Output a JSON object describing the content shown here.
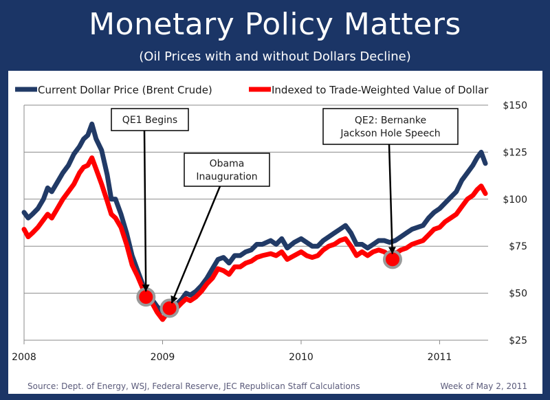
{
  "header": {
    "title": "Monetary Policy Matters",
    "subtitle": "(Oil Prices with and without Dollars Decline)"
  },
  "footer": {
    "source": "Source:  Dept. of Energy, WSJ, Federal Reserve, JEC Republican Staff Calculations",
    "date": "Week of May 2, 2011"
  },
  "colors": {
    "background": "#1b3566",
    "series_current": "#213a66",
    "series_indexed": "#ff0000",
    "marker": "#9a9a9a"
  },
  "chart_data": {
    "type": "line",
    "title": "Monetary Policy Matters",
    "subtitle": "(Oil Prices with and without Dollars Decline)",
    "xlabel": "",
    "ylabel": "",
    "xlim": [
      2008.0,
      2011.35
    ],
    "ylim": [
      25,
      150
    ],
    "x_ticks": [
      2008,
      2009,
      2010,
      2011
    ],
    "x_tick_labels": [
      "2008",
      "2009",
      "2010",
      "2011"
    ],
    "y_ticks": [
      25,
      50,
      75,
      100,
      125,
      150
    ],
    "y_tick_labels": [
      "$25",
      "$50",
      "$75",
      "$100",
      "$125",
      "$150"
    ],
    "y_axis_side": "right",
    "grid": "horizontal",
    "legend_position": "top",
    "series": [
      {
        "name": "Current Dollar Price (Brent Crude)",
        "color": "#213a66",
        "points": [
          [
            2008.0,
            93
          ],
          [
            2008.03,
            90
          ],
          [
            2008.06,
            92
          ],
          [
            2008.1,
            95
          ],
          [
            2008.14,
            100
          ],
          [
            2008.17,
            106
          ],
          [
            2008.2,
            104
          ],
          [
            2008.24,
            109
          ],
          [
            2008.28,
            114
          ],
          [
            2008.32,
            118
          ],
          [
            2008.36,
            124
          ],
          [
            2008.4,
            128
          ],
          [
            2008.43,
            132
          ],
          [
            2008.46,
            134
          ],
          [
            2008.49,
            140
          ],
          [
            2008.52,
            132
          ],
          [
            2008.56,
            126
          ],
          [
            2008.6,
            113
          ],
          [
            2008.63,
            100
          ],
          [
            2008.66,
            100
          ],
          [
            2008.7,
            92
          ],
          [
            2008.74,
            82
          ],
          [
            2008.78,
            70
          ],
          [
            2008.82,
            62
          ],
          [
            2008.86,
            54
          ],
          [
            2008.9,
            49
          ],
          [
            2008.93,
            46
          ],
          [
            2008.96,
            43
          ],
          [
            2009.0,
            40
          ],
          [
            2009.03,
            42
          ],
          [
            2009.06,
            43
          ],
          [
            2009.1,
            44
          ],
          [
            2009.14,
            47
          ],
          [
            2009.17,
            50
          ],
          [
            2009.2,
            49
          ],
          [
            2009.24,
            51
          ],
          [
            2009.28,
            54
          ],
          [
            2009.32,
            58
          ],
          [
            2009.36,
            63
          ],
          [
            2009.4,
            68
          ],
          [
            2009.44,
            69
          ],
          [
            2009.48,
            66
          ],
          [
            2009.52,
            70
          ],
          [
            2009.56,
            70
          ],
          [
            2009.6,
            72
          ],
          [
            2009.64,
            73
          ],
          [
            2009.68,
            76
          ],
          [
            2009.72,
            76
          ],
          [
            2009.78,
            78
          ],
          [
            2009.82,
            76
          ],
          [
            2009.86,
            79
          ],
          [
            2009.9,
            74
          ],
          [
            2009.95,
            77
          ],
          [
            2010.0,
            79
          ],
          [
            2010.04,
            77
          ],
          [
            2010.08,
            75
          ],
          [
            2010.12,
            75
          ],
          [
            2010.16,
            78
          ],
          [
            2010.2,
            80
          ],
          [
            2010.24,
            82
          ],
          [
            2010.28,
            84
          ],
          [
            2010.32,
            86
          ],
          [
            2010.36,
            82
          ],
          [
            2010.4,
            76
          ],
          [
            2010.44,
            76
          ],
          [
            2010.48,
            74
          ],
          [
            2010.52,
            76
          ],
          [
            2010.56,
            78
          ],
          [
            2010.6,
            78
          ],
          [
            2010.64,
            77
          ],
          [
            2010.68,
            78
          ],
          [
            2010.72,
            80
          ],
          [
            2010.76,
            82
          ],
          [
            2010.8,
            84
          ],
          [
            2010.84,
            85
          ],
          [
            2010.88,
            86
          ],
          [
            2010.92,
            90
          ],
          [
            2010.96,
            93
          ],
          [
            2011.0,
            95
          ],
          [
            2011.04,
            98
          ],
          [
            2011.08,
            101
          ],
          [
            2011.12,
            104
          ],
          [
            2011.16,
            110
          ],
          [
            2011.2,
            114
          ],
          [
            2011.24,
            118
          ],
          [
            2011.27,
            122
          ],
          [
            2011.3,
            125
          ],
          [
            2011.33,
            119
          ]
        ]
      },
      {
        "name": "Indexed to Trade-Weighted Value of Dollar",
        "color": "#ff0000",
        "points": [
          [
            2008.0,
            84
          ],
          [
            2008.03,
            80
          ],
          [
            2008.06,
            82
          ],
          [
            2008.1,
            85
          ],
          [
            2008.14,
            89
          ],
          [
            2008.17,
            92
          ],
          [
            2008.2,
            90
          ],
          [
            2008.24,
            95
          ],
          [
            2008.28,
            100
          ],
          [
            2008.32,
            104
          ],
          [
            2008.36,
            108
          ],
          [
            2008.4,
            114
          ],
          [
            2008.43,
            117
          ],
          [
            2008.46,
            118
          ],
          [
            2008.49,
            122
          ],
          [
            2008.52,
            116
          ],
          [
            2008.56,
            108
          ],
          [
            2008.6,
            99
          ],
          [
            2008.63,
            92
          ],
          [
            2008.66,
            90
          ],
          [
            2008.7,
            85
          ],
          [
            2008.74,
            76
          ],
          [
            2008.78,
            65
          ],
          [
            2008.82,
            59
          ],
          [
            2008.86,
            52
          ],
          [
            2008.9,
            48
          ],
          [
            2008.93,
            44
          ],
          [
            2008.96,
            40
          ],
          [
            2009.0,
            36
          ],
          [
            2009.03,
            39
          ],
          [
            2009.06,
            40
          ],
          [
            2009.1,
            42
          ],
          [
            2009.14,
            45
          ],
          [
            2009.17,
            47
          ],
          [
            2009.2,
            46
          ],
          [
            2009.24,
            48
          ],
          [
            2009.28,
            51
          ],
          [
            2009.32,
            55
          ],
          [
            2009.36,
            58
          ],
          [
            2009.4,
            63
          ],
          [
            2009.44,
            62
          ],
          [
            2009.48,
            60
          ],
          [
            2009.52,
            64
          ],
          [
            2009.56,
            64
          ],
          [
            2009.6,
            66
          ],
          [
            2009.64,
            67
          ],
          [
            2009.68,
            69
          ],
          [
            2009.72,
            70
          ],
          [
            2009.78,
            71
          ],
          [
            2009.82,
            70
          ],
          [
            2009.86,
            72
          ],
          [
            2009.9,
            68
          ],
          [
            2009.95,
            70
          ],
          [
            2010.0,
            72
          ],
          [
            2010.04,
            70
          ],
          [
            2010.08,
            69
          ],
          [
            2010.12,
            70
          ],
          [
            2010.16,
            73
          ],
          [
            2010.2,
            75
          ],
          [
            2010.24,
            76
          ],
          [
            2010.28,
            78
          ],
          [
            2010.32,
            79
          ],
          [
            2010.36,
            75
          ],
          [
            2010.4,
            70
          ],
          [
            2010.44,
            72
          ],
          [
            2010.48,
            70
          ],
          [
            2010.52,
            72
          ],
          [
            2010.56,
            73
          ],
          [
            2010.6,
            72
          ],
          [
            2010.64,
            70
          ],
          [
            2010.68,
            71
          ],
          [
            2010.72,
            73
          ],
          [
            2010.76,
            74
          ],
          [
            2010.8,
            76
          ],
          [
            2010.84,
            77
          ],
          [
            2010.88,
            78
          ],
          [
            2010.92,
            81
          ],
          [
            2010.96,
            84
          ],
          [
            2011.0,
            85
          ],
          [
            2011.04,
            88
          ],
          [
            2011.08,
            90
          ],
          [
            2011.12,
            92
          ],
          [
            2011.16,
            96
          ],
          [
            2011.2,
            100
          ],
          [
            2011.24,
            102
          ],
          [
            2011.27,
            105
          ],
          [
            2011.3,
            107
          ],
          [
            2011.33,
            103
          ]
        ]
      }
    ],
    "annotations": [
      {
        "text": "QE1 Begins",
        "x": 2008.88,
        "y": 48
      },
      {
        "text": "Obama Inauguration",
        "x": 2009.05,
        "y": 42
      },
      {
        "text": "QE2: Bernanke Jackson Hole Speech",
        "x": 2010.66,
        "y": 68
      }
    ]
  }
}
